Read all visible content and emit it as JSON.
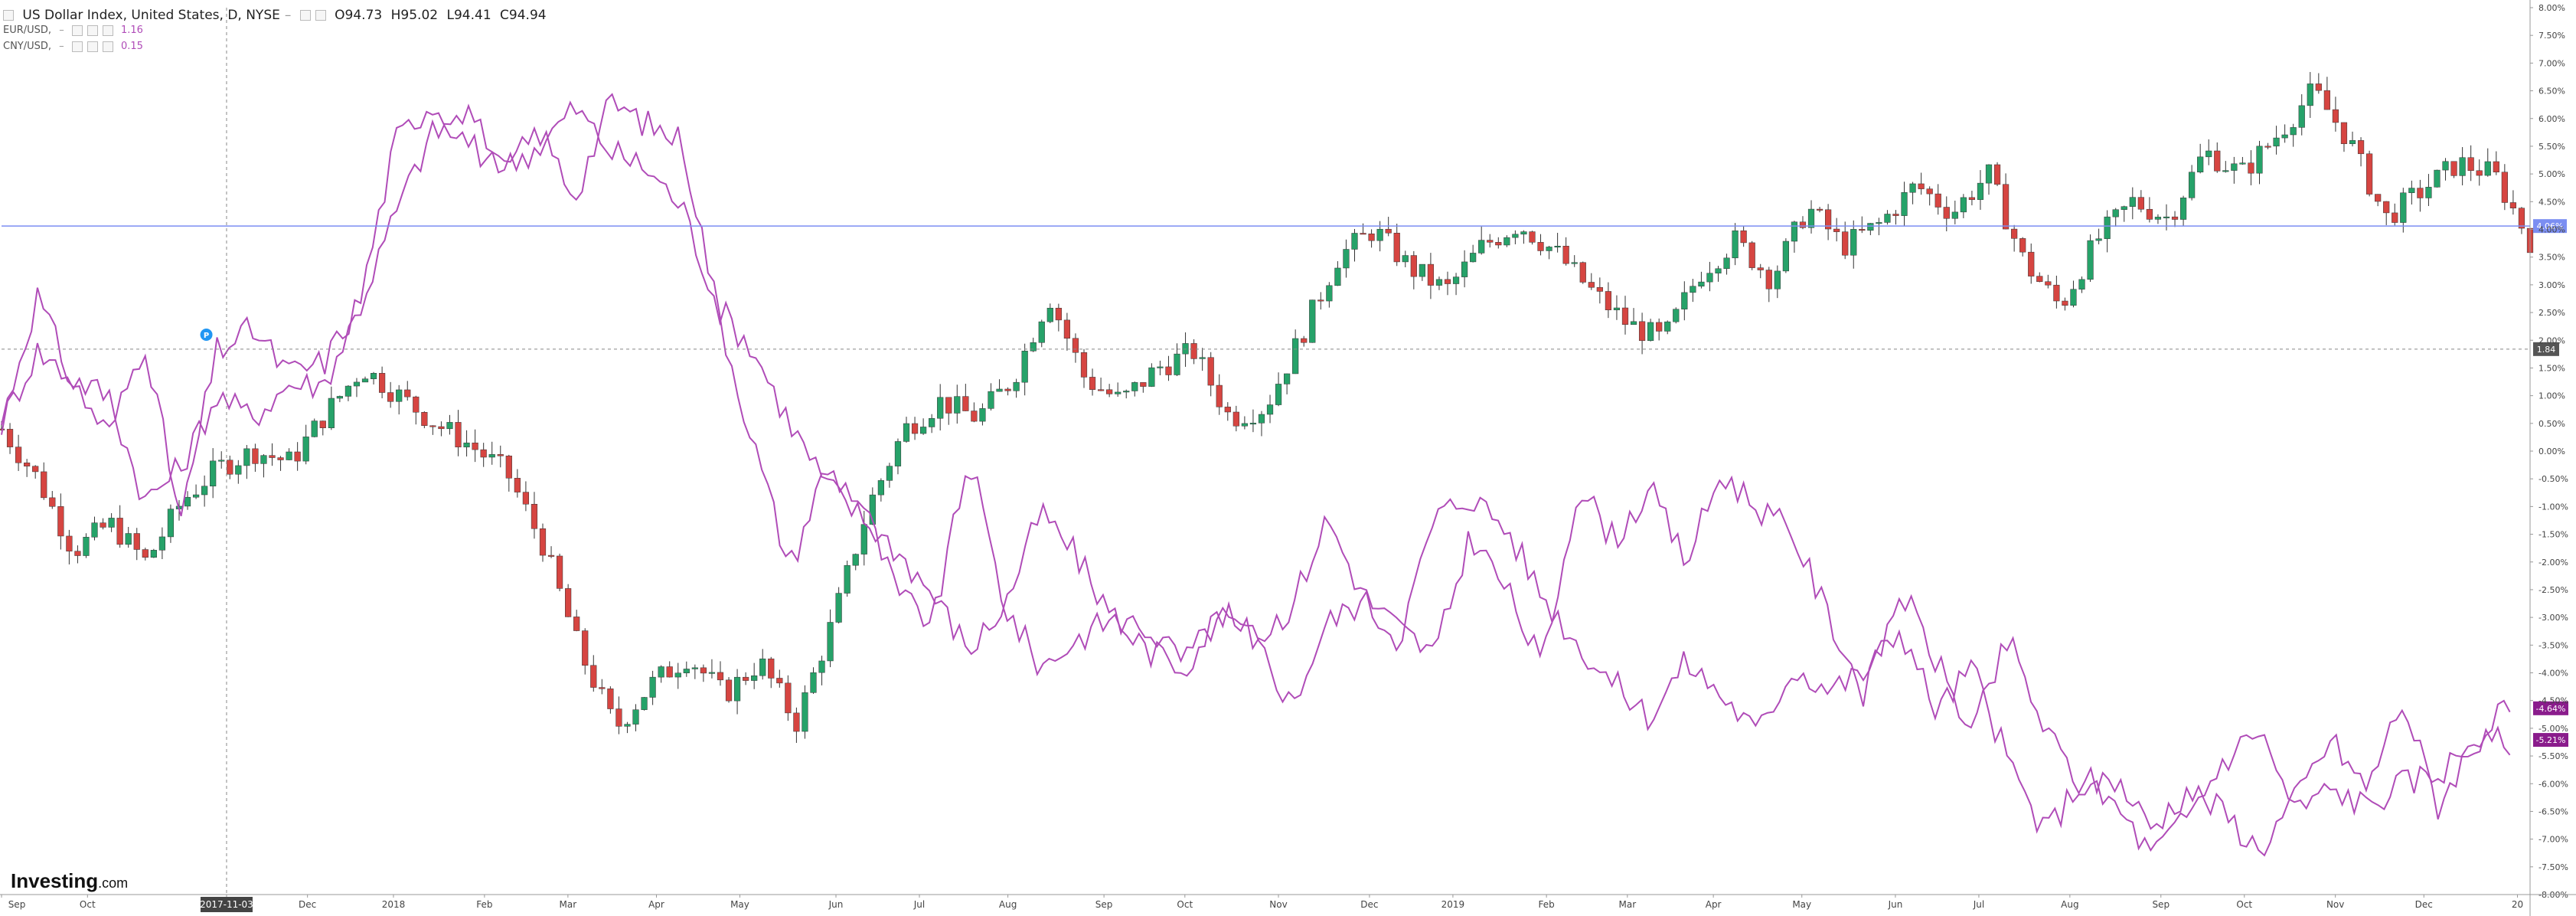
{
  "header": {
    "symbol_title": "US Dollar Index, United States, D, NYSE",
    "open": "O94.73",
    "high": "H95.02",
    "low": "L94.41",
    "close": "C94.94",
    "series1_name": "EUR/USD, ",
    "series1_value": "1.16",
    "series2_name": "CNY/USD, ",
    "series2_value": "0.15"
  },
  "watermark": {
    "brand": "Investing",
    "suffix": ".com"
  },
  "colors": {
    "up": "#26a269",
    "down": "#d64541",
    "compare_line": "#b04cb8",
    "price_line": "#7b8ef2",
    "crosshair": "#888888",
    "badge_dark": "#555555",
    "badge_purple": "#8a1c8c",
    "badge_marker": "#2196f3"
  },
  "chart_data": {
    "type": "line",
    "title": "US Dollar Index, United States, D, NYSE",
    "y_unit": "%",
    "ylim": [
      -8.0,
      8.0
    ],
    "y_ticks": [
      "8.00%",
      "7.50%",
      "7.00%",
      "6.50%",
      "6.00%",
      "5.50%",
      "5.00%",
      "4.50%",
      "4.00%",
      "3.50%",
      "3.00%",
      "2.50%",
      "2.00%",
      "1.50%",
      "1.00%",
      "0.50%",
      "0.00%",
      "-0.50%",
      "-1.00%",
      "-1.50%",
      "-2.00%",
      "-2.50%",
      "-3.00%",
      "-3.50%",
      "-4.00%",
      "-4.50%",
      "-5.00%",
      "-5.50%",
      "-6.00%",
      "-6.50%",
      "-7.00%",
      "-7.50%",
      "-8.00%"
    ],
    "x_ticks": [
      "Sep",
      "Oct",
      "2017-11-03",
      "Dec",
      "2018",
      "Feb",
      "Mar",
      "Apr",
      "May",
      "Jun",
      "Jul",
      "Aug",
      "Sep",
      "Oct",
      "Nov",
      "Dec",
      "2019",
      "Feb",
      "Mar",
      "Apr",
      "May",
      "Jun",
      "Jul",
      "Aug",
      "Sep",
      "Oct",
      "Nov",
      "Dec",
      "20"
    ],
    "x_tick_pos": [
      0.0,
      0.034,
      0.089,
      0.121,
      0.155,
      0.191,
      0.224,
      0.259,
      0.292,
      0.33,
      0.363,
      0.398,
      0.436,
      0.468,
      0.505,
      0.541,
      0.574,
      0.611,
      0.643,
      0.677,
      0.712,
      0.749,
      0.782,
      0.818,
      0.854,
      0.887,
      0.923,
      0.958,
      0.995
    ],
    "x_highlight_index": 2,
    "price_line_value": 4.06,
    "price_line_label": "4.06%",
    "crosshair_value": 1.84,
    "crosshair_label": "1.84",
    "crosshair_x": 0.089,
    "marker_x": 0.081,
    "marker_value": 2.1,
    "marker_label": "P",
    "last_value_labels": [
      "-4.64%",
      "-5.21%"
    ],
    "dxy_close_pct": [
      0.4,
      -0.5,
      -1.8,
      -1.3,
      -2.0,
      -0.9,
      -0.3,
      0.0,
      -0.2,
      0.7,
      1.5,
      1.0,
      0.5,
      0.1,
      -0.4,
      -1.7,
      -3.6,
      -5.0,
      -4.2,
      -3.7,
      -4.4,
      -3.8,
      -4.9,
      -3.1,
      -1.0,
      0.4,
      0.9,
      0.6,
      1.3,
      2.8,
      1.3,
      0.9,
      1.5,
      1.8,
      0.6,
      0.8,
      2.1,
      3.5,
      4.0,
      3.3,
      2.9,
      3.7,
      4.1,
      3.6,
      2.9,
      2.3,
      2.0,
      3.2,
      3.8,
      3.1,
      4.4,
      3.7,
      4.1,
      4.8,
      4.3,
      5.0,
      3.4,
      2.6,
      3.8,
      4.5,
      4.2,
      5.4,
      5.0,
      5.7,
      6.5,
      5.6,
      4.2,
      4.7,
      5.2,
      5.0,
      3.8
    ],
    "series": [
      {
        "name": "EUR/USD",
        "value_label": "1.16",
        "values": [
          0.5,
          2.8,
          1.2,
          0.3,
          2.0,
          -1.3,
          1.8,
          2.2,
          1.4,
          1.6,
          2.7,
          5.6,
          6.3,
          5.6,
          5.0,
          5.8,
          4.6,
          6.3,
          5.9,
          5.6,
          2.5,
          0.1,
          -2.1,
          -0.3,
          -0.9,
          -2.6,
          -3.1,
          -0.1,
          -2.8,
          -3.9,
          -3.4,
          -3.0,
          -3.6,
          -3.9,
          -2.9,
          -3.4,
          -2.8,
          -1.2,
          -2.6,
          -3.2,
          -3.7,
          -1.5,
          -2.5,
          -3.9,
          -0.6,
          -1.6,
          -0.7,
          -2.0,
          -0.4,
          -1.0,
          -1.5,
          -3.0,
          -4.4,
          -2.5,
          -3.8,
          -5.1,
          -3.4,
          -5.0,
          -6.0,
          -5.9,
          -6.8,
          -6.1,
          -6.5,
          -7.2,
          -6.3,
          -5.2,
          -6.1,
          -4.5,
          -6.4,
          -5.2,
          -4.64
        ]
      },
      {
        "name": "CNY/USD",
        "value_label": "0.15",
        "values": [
          0.5,
          1.8,
          1.3,
          1.0,
          -0.9,
          -0.3,
          1.0,
          0.6,
          1.2,
          1.2,
          2.6,
          4.3,
          5.7,
          6.1,
          5.1,
          5.5,
          6.2,
          5.4,
          5.1,
          4.4,
          2.6,
          1.8,
          0.5,
          -0.6,
          -1.2,
          -1.8,
          -2.6,
          -3.6,
          -2.8,
          -1.1,
          -1.9,
          -3.0,
          -3.2,
          -3.8,
          -3.0,
          -3.4,
          -4.6,
          -3.1,
          -2.7,
          -3.4,
          -1.2,
          -0.8,
          -1.4,
          -2.6,
          -3.5,
          -4.2,
          -4.8,
          -3.8,
          -4.4,
          -5.1,
          -3.9,
          -4.3,
          -4.0,
          -3.2,
          -4.7,
          -3.9,
          -5.6,
          -6.9,
          -6.0,
          -6.4,
          -7.3,
          -6.6,
          -5.6,
          -5.0,
          -6.5,
          -6.1,
          -6.4,
          -6.0,
          -5.8,
          -5.3,
          -5.21
        ]
      }
    ]
  }
}
